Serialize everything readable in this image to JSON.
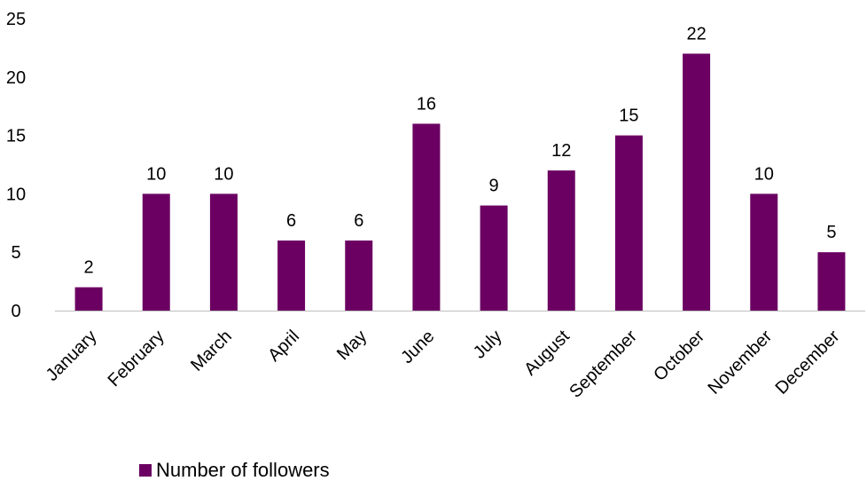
{
  "chart_data": {
    "type": "bar",
    "categories": [
      "January",
      "February",
      "March",
      "April",
      "May",
      "June",
      "July",
      "August",
      "September",
      "October",
      "November",
      "December"
    ],
    "series": [
      {
        "name": "Number of followers",
        "values": [
          2,
          10,
          10,
          6,
          6,
          16,
          9,
          12,
          15,
          22,
          10,
          5
        ]
      }
    ],
    "title": "",
    "xlabel": "",
    "ylabel": "",
    "ylim": [
      0,
      25
    ],
    "yticks": [
      0,
      5,
      10,
      15,
      20,
      25
    ],
    "grid": false,
    "data_labels": true,
    "legend": "bottom",
    "colors": {
      "bar": "#6b0062",
      "axis": "#bfbfbf"
    }
  }
}
